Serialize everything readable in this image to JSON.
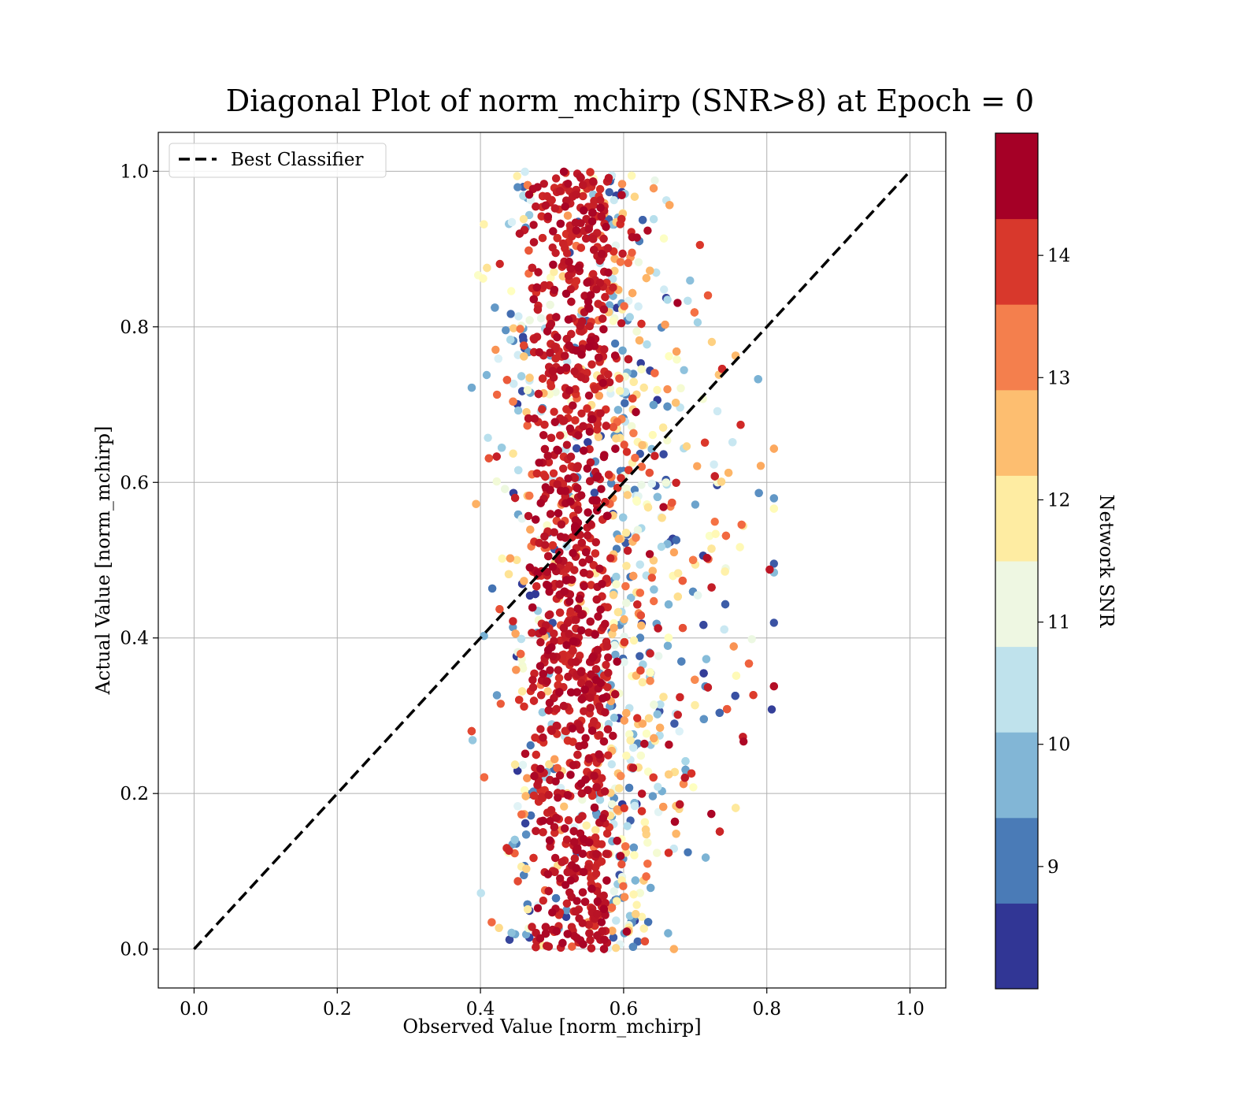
{
  "chart_data": {
    "type": "scatter",
    "title": "Diagonal Plot of norm_mchirp (SNR>8) at Epoch = 0",
    "xlabel": "Observed Value [norm_mchirp]",
    "ylabel": "Actual Value [norm_mchirp]",
    "xlim": [
      -0.05,
      1.05
    ],
    "ylim": [
      -0.05,
      1.05
    ],
    "xticks": [
      "0.0",
      "0.2",
      "0.4",
      "0.6",
      "0.8",
      "1.0"
    ],
    "yticks": [
      "0.0",
      "0.2",
      "0.4",
      "0.6",
      "0.8",
      "1.0"
    ],
    "grid": true,
    "legend": {
      "position": "top-left",
      "entries": [
        "Best Classifier"
      ]
    },
    "reference_line": {
      "name": "Best Classifier",
      "style": "dashed",
      "color": "#000000",
      "x": [
        0.0,
        1.0
      ],
      "y": [
        0.0,
        1.0
      ]
    },
    "colorbar": {
      "label": "Network SNR",
      "range": [
        8.0,
        15.0
      ],
      "ticks": [
        "9",
        "10",
        "11",
        "12",
        "13",
        "14"
      ],
      "colors": [
        "#313695",
        "#4575b4",
        "#74add1",
        "#abd9e9",
        "#e0f3f8",
        "#ffffbf",
        "#fee090",
        "#fdae61",
        "#f46d43",
        "#d73027",
        "#a50026"
      ],
      "bands": [
        "#313695",
        "#4a7bb7",
        "#82b6d6",
        "#bfe2ec",
        "#eef7e2",
        "#feeca2",
        "#fdbe70",
        "#f47f4d",
        "#d8382c",
        "#a50026"
      ]
    },
    "scatter": {
      "description_values": "Points cluster at observed 0.43-0.62 across actual 0.0-1.0; color = Network SNR",
      "x_center": 0.52,
      "x_spread": 0.045,
      "y_range": [
        0.0,
        1.0
      ],
      "max_observed": 0.81,
      "min_observed": 0.38
    }
  }
}
